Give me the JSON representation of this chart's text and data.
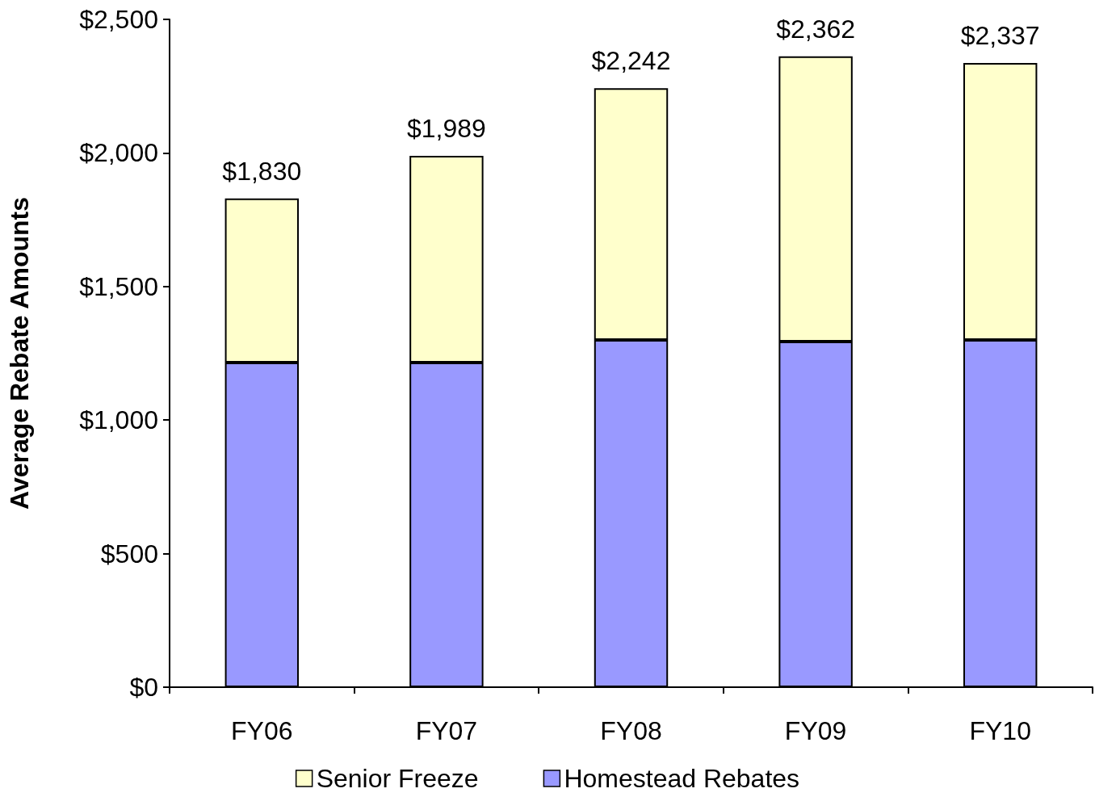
{
  "chart_data": {
    "type": "bar",
    "stacked": true,
    "ylabel": "Average Rebate Amounts",
    "categories": [
      "FY06",
      "FY07",
      "FY08",
      "FY09",
      "FY10"
    ],
    "series": [
      {
        "name": "Homestead Rebates",
        "color": "#9999ff",
        "values": [
          1215,
          1215,
          1300,
          1294,
          1300
        ]
      },
      {
        "name": "Senior Freeze",
        "color": "#ffffcc",
        "values": [
          615,
          774,
          942,
          1068,
          1037
        ]
      }
    ],
    "totals": [
      "$1,830",
      "$1,989",
      "$2,242",
      "$2,362",
      "$2,337"
    ],
    "ylim": [
      0,
      2500
    ],
    "yticks": [
      {
        "value": 0,
        "label": "$0"
      },
      {
        "value": 500,
        "label": "$500"
      },
      {
        "value": 1000,
        "label": "$1,000"
      },
      {
        "value": 1500,
        "label": "$1,500"
      },
      {
        "value": 2000,
        "label": "$2,000"
      },
      {
        "value": 2500,
        "label": "$2,500"
      }
    ],
    "grid": false,
    "legend": "bottom"
  }
}
